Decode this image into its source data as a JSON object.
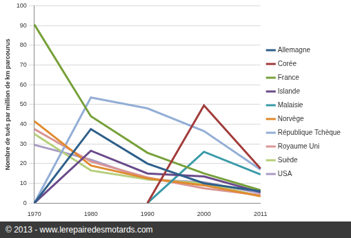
{
  "chart_data": {
    "type": "line",
    "y_label": "Nombre de tués par million de km parcourus",
    "source": "© 2013 - www.lerepairedesmotards.com",
    "categories": [
      "1970",
      "1980",
      "1990",
      "2000",
      "2011"
    ],
    "series": [
      {
        "name": "Allemagne",
        "color": "#2e5f8a",
        "values": [
          0,
          37.5,
          20,
          10,
          6
        ]
      },
      {
        "name": "Corée",
        "color": "#a23b3a",
        "values": [
          null,
          null,
          0,
          49.5,
          17.5
        ]
      },
      {
        "name": "France",
        "color": "#77a03a",
        "values": [
          90.5,
          44,
          25.5,
          15,
          6.5
        ]
      },
      {
        "name": "Islande",
        "color": "#6a4a8a",
        "values": [
          0,
          26.5,
          15,
          13.5,
          5.5
        ]
      },
      {
        "name": "Malaisie",
        "color": "#3a9aa8",
        "values": [
          null,
          null,
          0,
          26,
          14.5
        ]
      },
      {
        "name": "Norvège",
        "color": "#e08a2e",
        "values": [
          41.5,
          19,
          12.5,
          9,
          3.5
        ]
      },
      {
        "name": "République Tchèque",
        "color": "#93aed6",
        "values": [
          0,
          53.5,
          48,
          36.5,
          17
        ]
      },
      {
        "name": "Royaume Uni",
        "color": "#d99594",
        "values": [
          37.5,
          21,
          13,
          7.5,
          4
        ]
      },
      {
        "name": "Suède",
        "color": "#b5cf7a",
        "values": [
          35,
          16.5,
          12,
          10,
          3.5
        ]
      },
      {
        "name": "USA",
        "color": "#a99ac4",
        "values": [
          29.5,
          22,
          12,
          10.5,
          5
        ]
      }
    ],
    "ylim": [
      0,
      100
    ],
    "yticks": [
      0,
      10,
      20,
      30,
      40,
      50,
      60,
      70,
      80,
      90,
      100
    ],
    "grid": true,
    "legend": "right"
  }
}
